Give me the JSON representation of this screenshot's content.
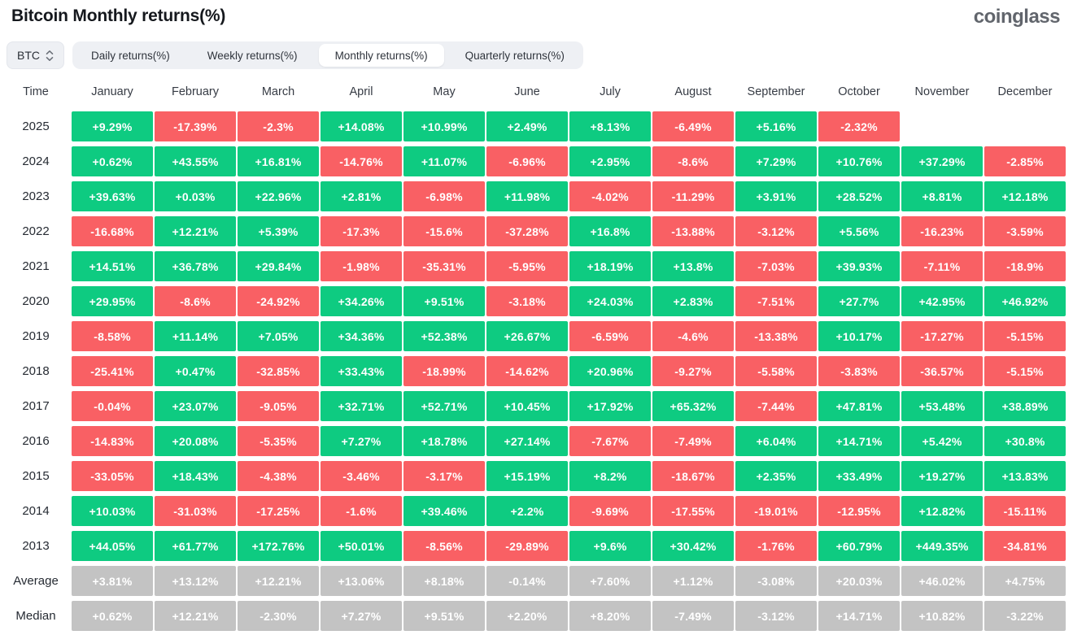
{
  "header": {
    "title": "Bitcoin Monthly returns(%)",
    "logo": "coinglass"
  },
  "controls": {
    "symbol_select": {
      "value": "BTC",
      "icon": "updown-chevron-icon"
    },
    "tabs": [
      {
        "label": "Daily returns(%)",
        "active": false
      },
      {
        "label": "Weekly returns(%)",
        "active": false
      },
      {
        "label": "Monthly returns(%)",
        "active": true
      },
      {
        "label": "Quarterly returns(%)",
        "active": false
      }
    ]
  },
  "colors": {
    "positive": "#0ecb81",
    "negative": "#f96064",
    "summary": "#c3c3c3",
    "tab_bg": "#eef0f4",
    "text_dark": "#15181d",
    "logo_gray": "#61656c"
  },
  "chart_data": {
    "type": "heatmap",
    "title": "Bitcoin Monthly returns(%)",
    "legend": "green = positive monthly return, red = negative, gray = summary rows, blank = no data yet",
    "columns": [
      "Time",
      "January",
      "February",
      "March",
      "April",
      "May",
      "June",
      "July",
      "August",
      "September",
      "October",
      "November",
      "December"
    ],
    "rows": [
      {
        "label": "2025",
        "kind": "year",
        "values": [
          "+9.29%",
          "-17.39%",
          "-2.3%",
          "+14.08%",
          "+10.99%",
          "+2.49%",
          "+8.13%",
          "-6.49%",
          "+5.16%",
          "-2.32%",
          null,
          null
        ]
      },
      {
        "label": "2024",
        "kind": "year",
        "values": [
          "+0.62%",
          "+43.55%",
          "+16.81%",
          "-14.76%",
          "+11.07%",
          "-6.96%",
          "+2.95%",
          "-8.6%",
          "+7.29%",
          "+10.76%",
          "+37.29%",
          "-2.85%"
        ]
      },
      {
        "label": "2023",
        "kind": "year",
        "values": [
          "+39.63%",
          "+0.03%",
          "+22.96%",
          "+2.81%",
          "-6.98%",
          "+11.98%",
          "-4.02%",
          "-11.29%",
          "+3.91%",
          "+28.52%",
          "+8.81%",
          "+12.18%"
        ]
      },
      {
        "label": "2022",
        "kind": "year",
        "values": [
          "-16.68%",
          "+12.21%",
          "+5.39%",
          "-17.3%",
          "-15.6%",
          "-37.28%",
          "+16.8%",
          "-13.88%",
          "-3.12%",
          "+5.56%",
          "-16.23%",
          "-3.59%"
        ]
      },
      {
        "label": "2021",
        "kind": "year",
        "values": [
          "+14.51%",
          "+36.78%",
          "+29.84%",
          "-1.98%",
          "-35.31%",
          "-5.95%",
          "+18.19%",
          "+13.8%",
          "-7.03%",
          "+39.93%",
          "-7.11%",
          "-18.9%"
        ]
      },
      {
        "label": "2020",
        "kind": "year",
        "values": [
          "+29.95%",
          "-8.6%",
          "-24.92%",
          "+34.26%",
          "+9.51%",
          "-3.18%",
          "+24.03%",
          "+2.83%",
          "-7.51%",
          "+27.7%",
          "+42.95%",
          "+46.92%"
        ]
      },
      {
        "label": "2019",
        "kind": "year",
        "values": [
          "-8.58%",
          "+11.14%",
          "+7.05%",
          "+34.36%",
          "+52.38%",
          "+26.67%",
          "-6.59%",
          "-4.6%",
          "-13.38%",
          "+10.17%",
          "-17.27%",
          "-5.15%"
        ]
      },
      {
        "label": "2018",
        "kind": "year",
        "values": [
          "-25.41%",
          "+0.47%",
          "-32.85%",
          "+33.43%",
          "-18.99%",
          "-14.62%",
          "+20.96%",
          "-9.27%",
          "-5.58%",
          "-3.83%",
          "-36.57%",
          "-5.15%"
        ]
      },
      {
        "label": "2017",
        "kind": "year",
        "values": [
          "-0.04%",
          "+23.07%",
          "-9.05%",
          "+32.71%",
          "+52.71%",
          "+10.45%",
          "+17.92%",
          "+65.32%",
          "-7.44%",
          "+47.81%",
          "+53.48%",
          "+38.89%"
        ]
      },
      {
        "label": "2016",
        "kind": "year",
        "values": [
          "-14.83%",
          "+20.08%",
          "-5.35%",
          "+7.27%",
          "+18.78%",
          "+27.14%",
          "-7.67%",
          "-7.49%",
          "+6.04%",
          "+14.71%",
          "+5.42%",
          "+30.8%"
        ]
      },
      {
        "label": "2015",
        "kind": "year",
        "values": [
          "-33.05%",
          "+18.43%",
          "-4.38%",
          "-3.46%",
          "-3.17%",
          "+15.19%",
          "+8.2%",
          "-18.67%",
          "+2.35%",
          "+33.49%",
          "+19.27%",
          "+13.83%"
        ]
      },
      {
        "label": "2014",
        "kind": "year",
        "values": [
          "+10.03%",
          "-31.03%",
          "-17.25%",
          "-1.6%",
          "+39.46%",
          "+2.2%",
          "-9.69%",
          "-17.55%",
          "-19.01%",
          "-12.95%",
          "+12.82%",
          "-15.11%"
        ]
      },
      {
        "label": "2013",
        "kind": "year",
        "values": [
          "+44.05%",
          "+61.77%",
          "+172.76%",
          "+50.01%",
          "-8.56%",
          "-29.89%",
          "+9.6%",
          "+30.42%",
          "-1.76%",
          "+60.79%",
          "+449.35%",
          "-34.81%"
        ]
      },
      {
        "label": "Average",
        "kind": "summary",
        "values": [
          "+3.81%",
          "+13.12%",
          "+12.21%",
          "+13.06%",
          "+8.18%",
          "-0.14%",
          "+7.60%",
          "+1.12%",
          "-3.08%",
          "+20.03%",
          "+46.02%",
          "+4.75%"
        ]
      },
      {
        "label": "Median",
        "kind": "summary",
        "values": [
          "+0.62%",
          "+12.21%",
          "-2.30%",
          "+7.27%",
          "+9.51%",
          "+2.20%",
          "+8.20%",
          "-7.49%",
          "-3.12%",
          "+14.71%",
          "+10.82%",
          "-3.22%"
        ]
      }
    ]
  }
}
